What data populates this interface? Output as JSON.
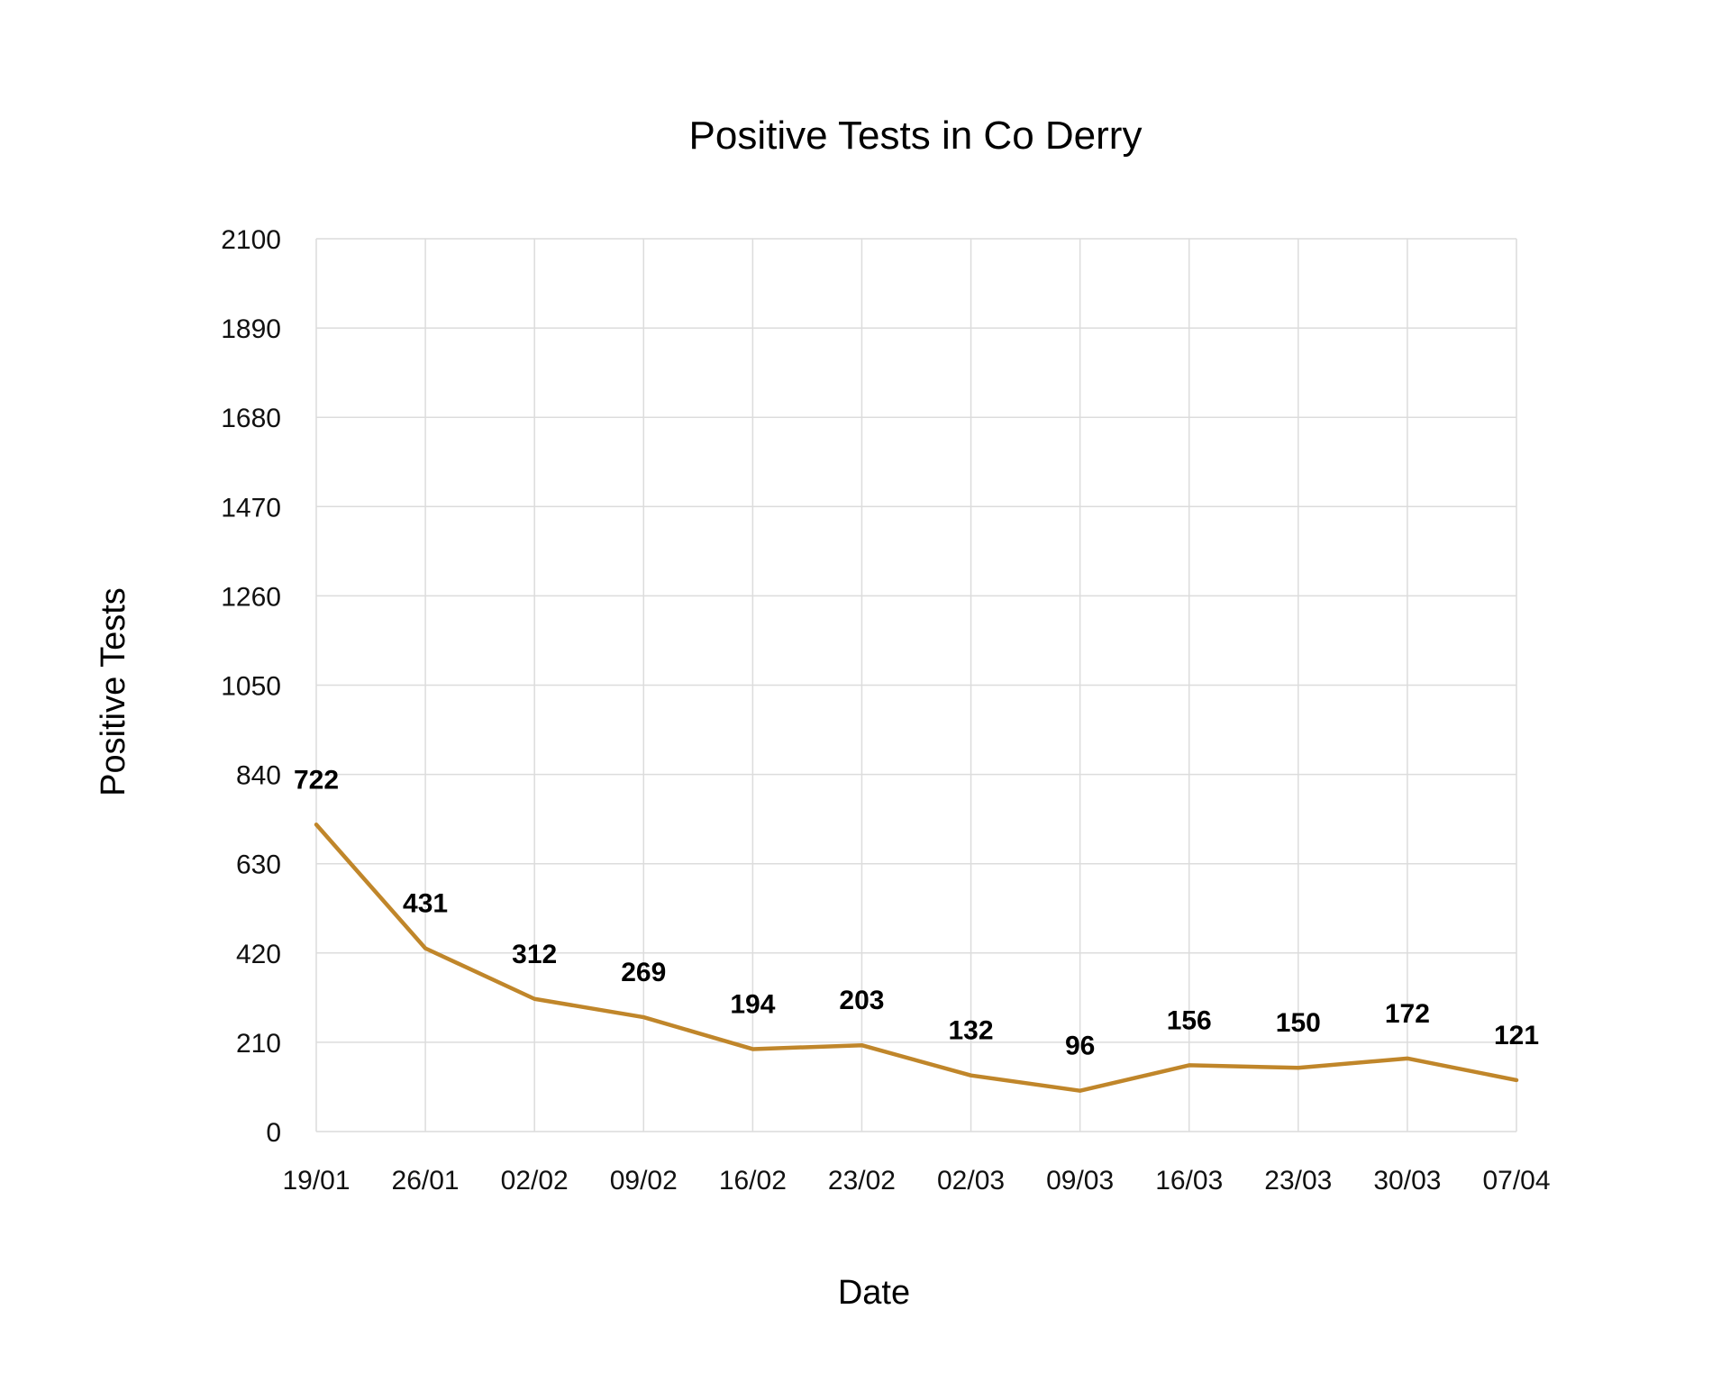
{
  "chart_data": {
    "type": "line",
    "title": "Positive Tests in Co Derry",
    "xlabel": "Date",
    "ylabel": "Positive Tests",
    "categories": [
      "19/01",
      "26/01",
      "02/02",
      "09/02",
      "16/02",
      "23/02",
      "02/03",
      "09/03",
      "16/03",
      "23/03",
      "30/03",
      "07/04"
    ],
    "series": [
      {
        "values": [
          722,
          431,
          312,
          269,
          194,
          203,
          132,
          96,
          156,
          150,
          172,
          121
        ],
        "color": "#c0862a"
      }
    ],
    "yticks": [
      "0",
      "210",
      "420",
      "630",
      "840",
      "1050",
      "1260",
      "1470",
      "1680",
      "1890",
      "2100"
    ],
    "ylim": [
      0,
      2100
    ],
    "grid": true,
    "legend": "none",
    "data_labels": true
  }
}
